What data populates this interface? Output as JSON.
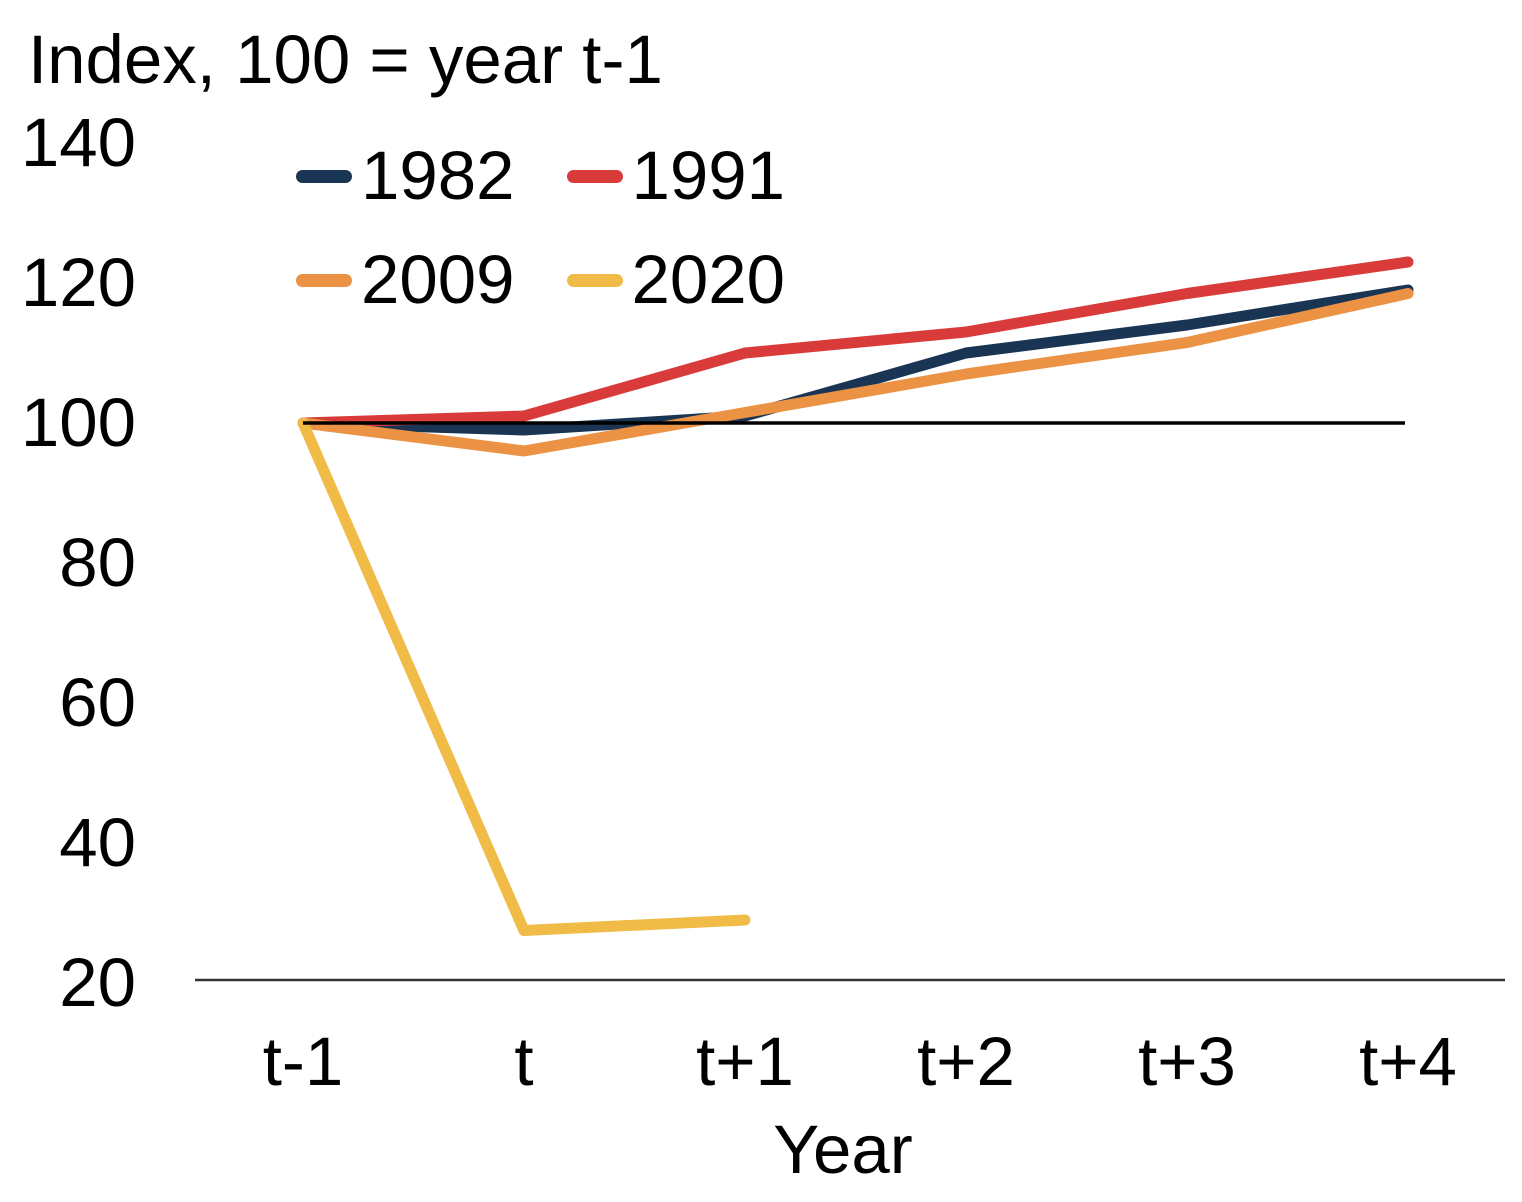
{
  "chart_data": {
    "type": "line",
    "title": "Index, 100 = year t-1",
    "xlabel": "Year",
    "categories": [
      "t-1",
      "t",
      "t+1",
      "t+2",
      "t+3",
      "t+4"
    ],
    "yticks": [
      140,
      120,
      100,
      80,
      60,
      40,
      20
    ],
    "ylim": [
      20,
      140
    ],
    "grid": "off",
    "legend_position": "top-left 2x2",
    "reference_line": {
      "y": 100,
      "color": "#000000"
    },
    "axis_line_color": "#333333",
    "series": [
      {
        "name": "1982",
        "color": "#1a3553",
        "values": [
          100,
          99,
          101,
          110,
          114,
          119
        ]
      },
      {
        "name": "1991",
        "color": "#d93a3a",
        "values": [
          100,
          101,
          110,
          113,
          118.5,
          123
        ]
      },
      {
        "name": "2009",
        "color": "#eb9245",
        "values": [
          100,
          96,
          101.5,
          107,
          111.5,
          118.5
        ]
      },
      {
        "name": "2020",
        "color": "#f1bb47",
        "values": [
          100,
          27.5,
          29,
          null,
          null,
          null
        ]
      }
    ]
  }
}
